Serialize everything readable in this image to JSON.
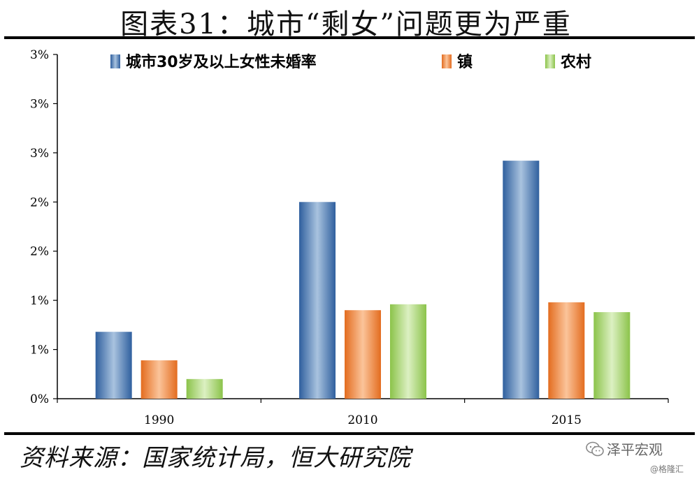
{
  "title": "图表31：城市“剩女”问题更为严重",
  "source": "资料来源：国家统计局，恒大研究院",
  "brand": "泽平宏观",
  "watermark": "@格隆汇",
  "chart_data": {
    "type": "bar",
    "categories": [
      "1990",
      "2010",
      "2015"
    ],
    "series": [
      {
        "name": "城市30岁及以上女性未婚率",
        "values": [
          0.68,
          2.0,
          2.42
        ],
        "color": "#4f81bd"
      },
      {
        "name": "镇",
        "values": [
          0.39,
          0.9,
          0.98
        ],
        "color": "#f79646"
      },
      {
        "name": "农村",
        "values": [
          0.2,
          0.96,
          0.88
        ],
        "color": "#9bbb59"
      }
    ],
    "ylim": [
      0,
      3.5
    ],
    "yticks": [
      0,
      0.5,
      1.0,
      1.5,
      2.0,
      2.5,
      3.0,
      3.5
    ],
    "ytick_labels": [
      "0%",
      "1%",
      "1%",
      "2%",
      "2%",
      "3%",
      "3%",
      "3%"
    ],
    "grid": false,
    "legend_position": "top"
  }
}
